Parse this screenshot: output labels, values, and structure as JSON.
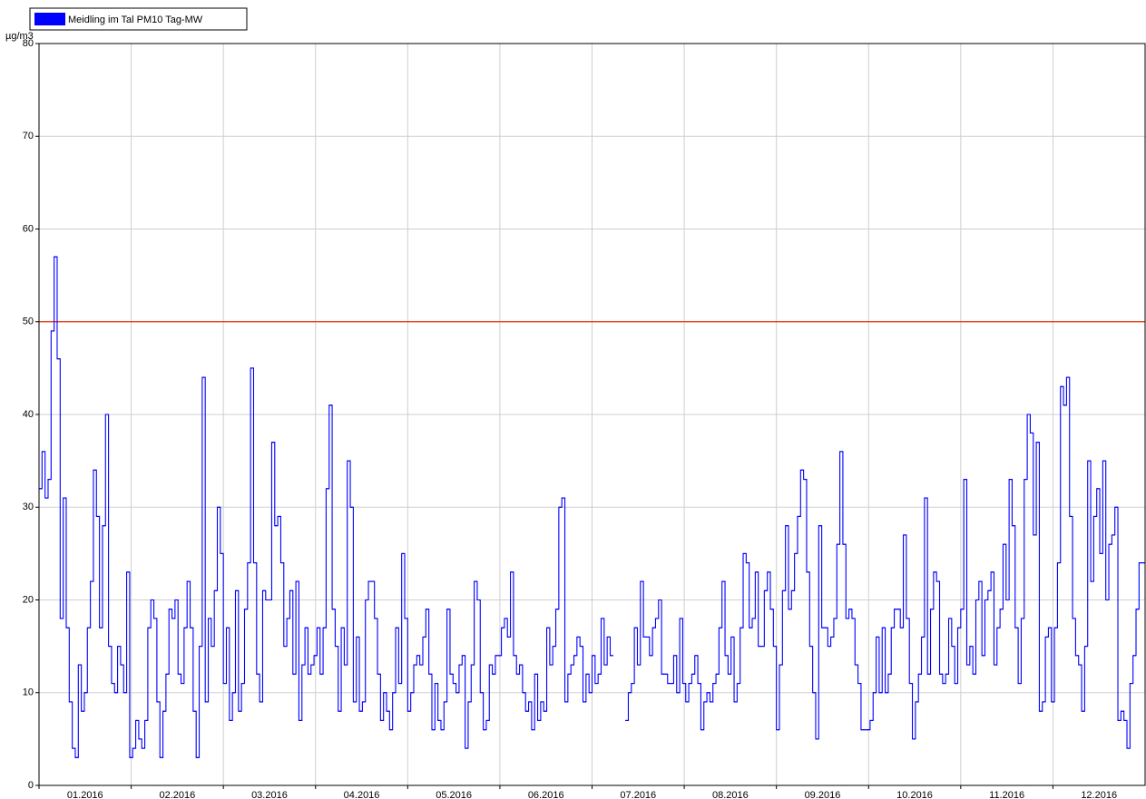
{
  "chart_data": {
    "type": "step",
    "y_label": "µg/m3",
    "series": [
      {
        "name": "Meidling im Tal PM10 Tag-MW",
        "color": "#0000ff",
        "values": [
          32,
          36,
          31,
          33,
          49,
          57,
          46,
          18,
          31,
          17,
          9,
          4,
          3,
          13,
          8,
          10,
          17,
          22,
          34,
          29,
          17,
          28,
          40,
          15,
          11,
          10,
          15,
          13,
          10,
          23,
          3,
          4,
          7,
          5,
          4,
          7,
          17,
          20,
          18,
          9,
          3,
          8,
          12,
          19,
          18,
          20,
          12,
          11,
          17,
          22,
          17,
          8,
          3,
          15,
          44,
          9,
          18,
          15,
          21,
          30,
          25,
          11,
          17,
          7,
          10,
          21,
          8,
          11,
          19,
          24,
          45,
          24,
          12,
          9,
          21,
          20,
          20,
          37,
          28,
          29,
          24,
          15,
          18,
          21,
          12,
          22,
          7,
          13,
          17,
          12,
          13,
          14,
          17,
          12,
          17,
          32,
          41,
          19,
          15,
          8,
          17,
          13,
          35,
          30,
          9,
          16,
          8,
          9,
          20,
          22,
          22,
          18,
          12,
          7,
          10,
          8,
          6,
          10,
          17,
          11,
          25,
          18,
          8,
          10,
          13,
          14,
          13,
          16,
          19,
          12,
          6,
          11,
          7,
          6,
          9,
          19,
          12,
          11,
          10,
          13,
          14,
          4,
          9,
          13,
          22,
          20,
          10,
          6,
          7,
          13,
          12,
          14,
          14,
          17,
          18,
          16,
          23,
          14,
          12,
          13,
          10,
          8,
          9,
          6,
          12,
          7,
          9,
          8,
          17,
          13,
          15,
          19,
          30,
          31,
          9,
          12,
          13,
          14,
          16,
          15,
          9,
          12,
          10,
          14,
          11,
          12,
          18,
          13,
          16,
          14,
          null,
          null,
          null,
          null,
          7,
          10,
          11,
          17,
          13,
          22,
          16,
          16,
          14,
          17,
          18,
          20,
          12,
          12,
          11,
          11,
          14,
          10,
          18,
          11,
          9,
          11,
          12,
          14,
          11,
          6,
          9,
          10,
          9,
          11,
          12,
          17,
          22,
          14,
          12,
          16,
          9,
          11,
          17,
          25,
          24,
          17,
          18,
          23,
          15,
          15,
          21,
          23,
          19,
          15,
          6,
          13,
          21,
          28,
          19,
          21,
          25,
          29,
          34,
          33,
          23,
          15,
          10,
          5,
          28,
          17,
          17,
          15,
          16,
          18,
          26,
          36,
          26,
          18,
          19,
          18,
          13,
          11,
          6,
          6,
          6,
          7,
          10,
          16,
          10,
          17,
          10,
          12,
          17,
          19,
          19,
          17,
          27,
          18,
          11,
          5,
          9,
          12,
          16,
          31,
          12,
          19,
          23,
          22,
          12,
          11,
          12,
          18,
          15,
          11,
          17,
          19,
          33,
          13,
          15,
          12,
          20,
          22,
          14,
          20,
          21,
          23,
          13,
          17,
          19,
          26,
          20,
          33,
          28,
          17,
          11,
          18,
          33,
          40,
          38,
          27,
          37,
          8,
          9,
          16,
          17,
          9,
          17,
          24,
          43,
          41,
          44,
          29,
          18,
          14,
          13,
          8,
          15,
          35,
          22,
          29,
          32,
          25,
          35,
          20,
          26,
          27,
          30,
          7,
          8,
          7,
          4,
          11,
          14,
          19,
          24,
          24
        ]
      }
    ],
    "xticks": [
      "01.2016",
      "02.2016",
      "03.2016",
      "04.2016",
      "05.2016",
      "06.2016",
      "07.2016",
      "08.2016",
      "09.2016",
      "10.2016",
      "11.2016",
      "12.2016"
    ],
    "ylim": [
      0,
      80
    ],
    "yticks": [
      0,
      10,
      20,
      30,
      40,
      50,
      60,
      70,
      80
    ],
    "grid": true,
    "threshold": 50,
    "threshold_color": "#e8300a"
  }
}
